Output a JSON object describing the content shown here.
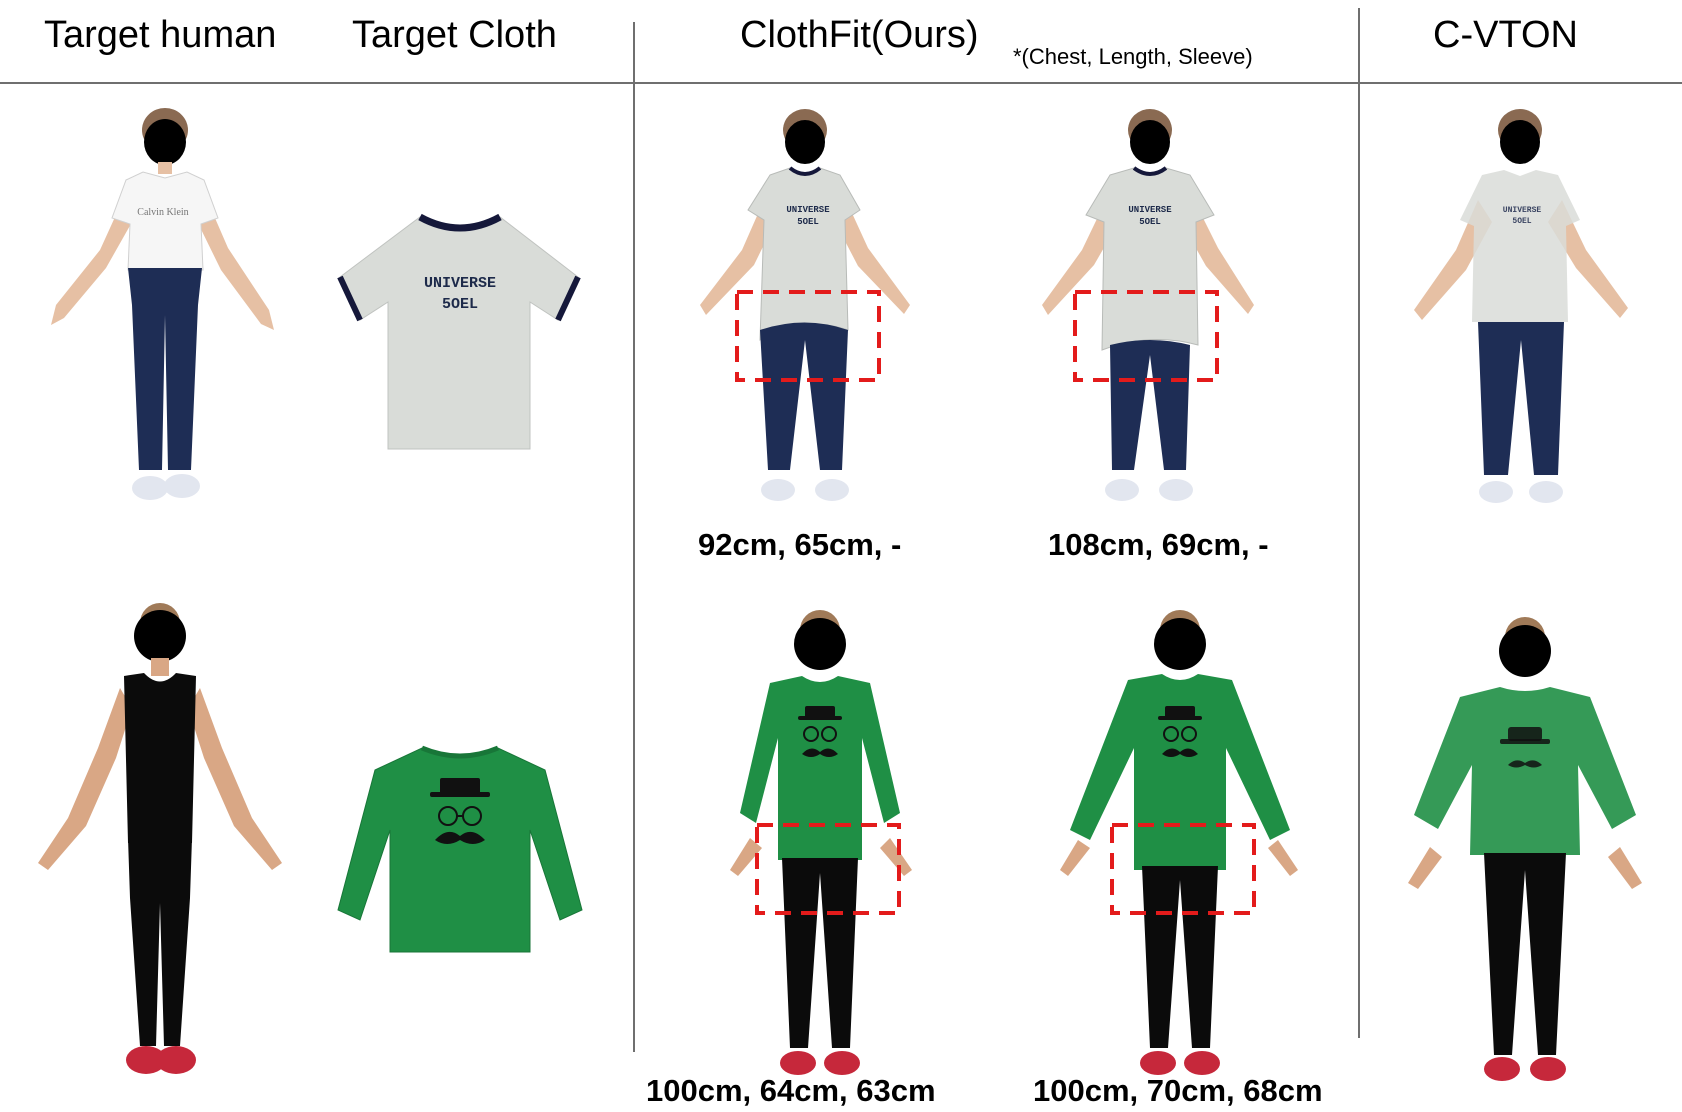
{
  "columns": {
    "target_human": "Target human",
    "target_cloth": "Target Cloth",
    "clothfit": "ClothFit(Ours)",
    "clothfit_note": "*(Chest, Length, Sleeve)",
    "cvton": "C-VTON"
  },
  "row1": {
    "cloth_print_line1": "UNIVERSE",
    "cloth_print_line2": "5OEL",
    "human_shirt_logo": "Calvin Klein",
    "measurements": [
      "92cm, 65cm, -",
      "108cm, 69cm, -"
    ]
  },
  "row2": {
    "measurements": [
      "100cm, 64cm, 63cm",
      "100cm, 70cm, 68cm"
    ]
  },
  "colors": {
    "highlight_box": "#e31b1b",
    "grey_tee": "#d9dcd8",
    "green_tee": "#1f8f45",
    "jeans": "#1e2d55",
    "separator": "#6f6f6f"
  }
}
